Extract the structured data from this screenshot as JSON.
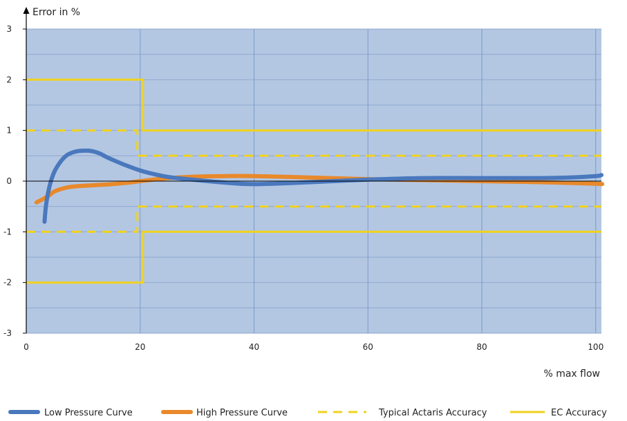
{
  "chart_data": {
    "type": "line",
    "title": "",
    "ylabel": "Error in %",
    "xlabel": "% max flow",
    "xlim": [
      0,
      101
    ],
    "ylim": [
      -3,
      3
    ],
    "x_ticks": [
      0,
      20,
      40,
      60,
      80,
      100
    ],
    "y_ticks": [
      -3,
      -2,
      -1,
      0,
      1,
      2,
      3
    ],
    "x_tick_labels": [
      "0",
      "20",
      "40",
      "60",
      "80",
      "100"
    ],
    "y_tick_labels": [
      "-3",
      "-2",
      "-1",
      "0",
      "1",
      "2",
      "3"
    ],
    "grid": true,
    "legend_position": "bottom",
    "plot_background": "#b3c7e3",
    "series": [
      {
        "name": "Low Pressure Curve",
        "style": "solid-thick",
        "color": "#4a78bd",
        "x": [
          3.2,
          3.5,
          4.2,
          5,
          6,
          7,
          8,
          9,
          10,
          11,
          12,
          13,
          14,
          16,
          18,
          20,
          22,
          25,
          30,
          35,
          40,
          50,
          60,
          70,
          80,
          90,
          95,
          100,
          101
        ],
        "y": [
          -0.8,
          -0.45,
          -0.05,
          0.2,
          0.38,
          0.5,
          0.56,
          0.59,
          0.6,
          0.6,
          0.58,
          0.54,
          0.48,
          0.38,
          0.29,
          0.21,
          0.15,
          0.08,
          0.02,
          -0.03,
          -0.06,
          -0.02,
          0.03,
          0.06,
          0.06,
          0.06,
          0.07,
          0.1,
          0.12
        ]
      },
      {
        "name": "High Pressure Curve",
        "style": "solid-thick",
        "color": "#e8892b",
        "x": [
          1.8,
          3,
          4,
          5,
          7,
          9,
          12,
          15,
          18,
          20,
          25,
          30,
          35,
          40,
          50,
          60,
          70,
          80,
          90,
          100,
          101
        ],
        "y": [
          -0.42,
          -0.35,
          -0.28,
          -0.2,
          -0.13,
          -0.1,
          -0.08,
          -0.06,
          -0.03,
          0.0,
          0.06,
          0.09,
          0.1,
          0.1,
          0.07,
          0.04,
          0.02,
          0.0,
          -0.02,
          -0.05,
          -0.06
        ]
      },
      {
        "name": "Typical Actaris Accuracy",
        "style": "dashed",
        "color": "#f2d21b",
        "segments": [
          {
            "x": [
              0,
              19.5,
              19.5,
              101
            ],
            "y": [
              1,
              1,
              0.5,
              0.5
            ]
          },
          {
            "x": [
              0,
              19.5,
              19.5,
              101
            ],
            "y": [
              -1,
              -1,
              -0.5,
              -0.5
            ]
          }
        ]
      },
      {
        "name": "EC Accuracy",
        "style": "solid",
        "color": "#f2d21b",
        "segments": [
          {
            "x": [
              0,
              20.5,
              20.5,
              101
            ],
            "y": [
              2,
              2,
              1,
              1
            ]
          },
          {
            "x": [
              0,
              20.5,
              20.5,
              101
            ],
            "y": [
              -2,
              -2,
              -1,
              -1
            ]
          }
        ]
      }
    ]
  }
}
